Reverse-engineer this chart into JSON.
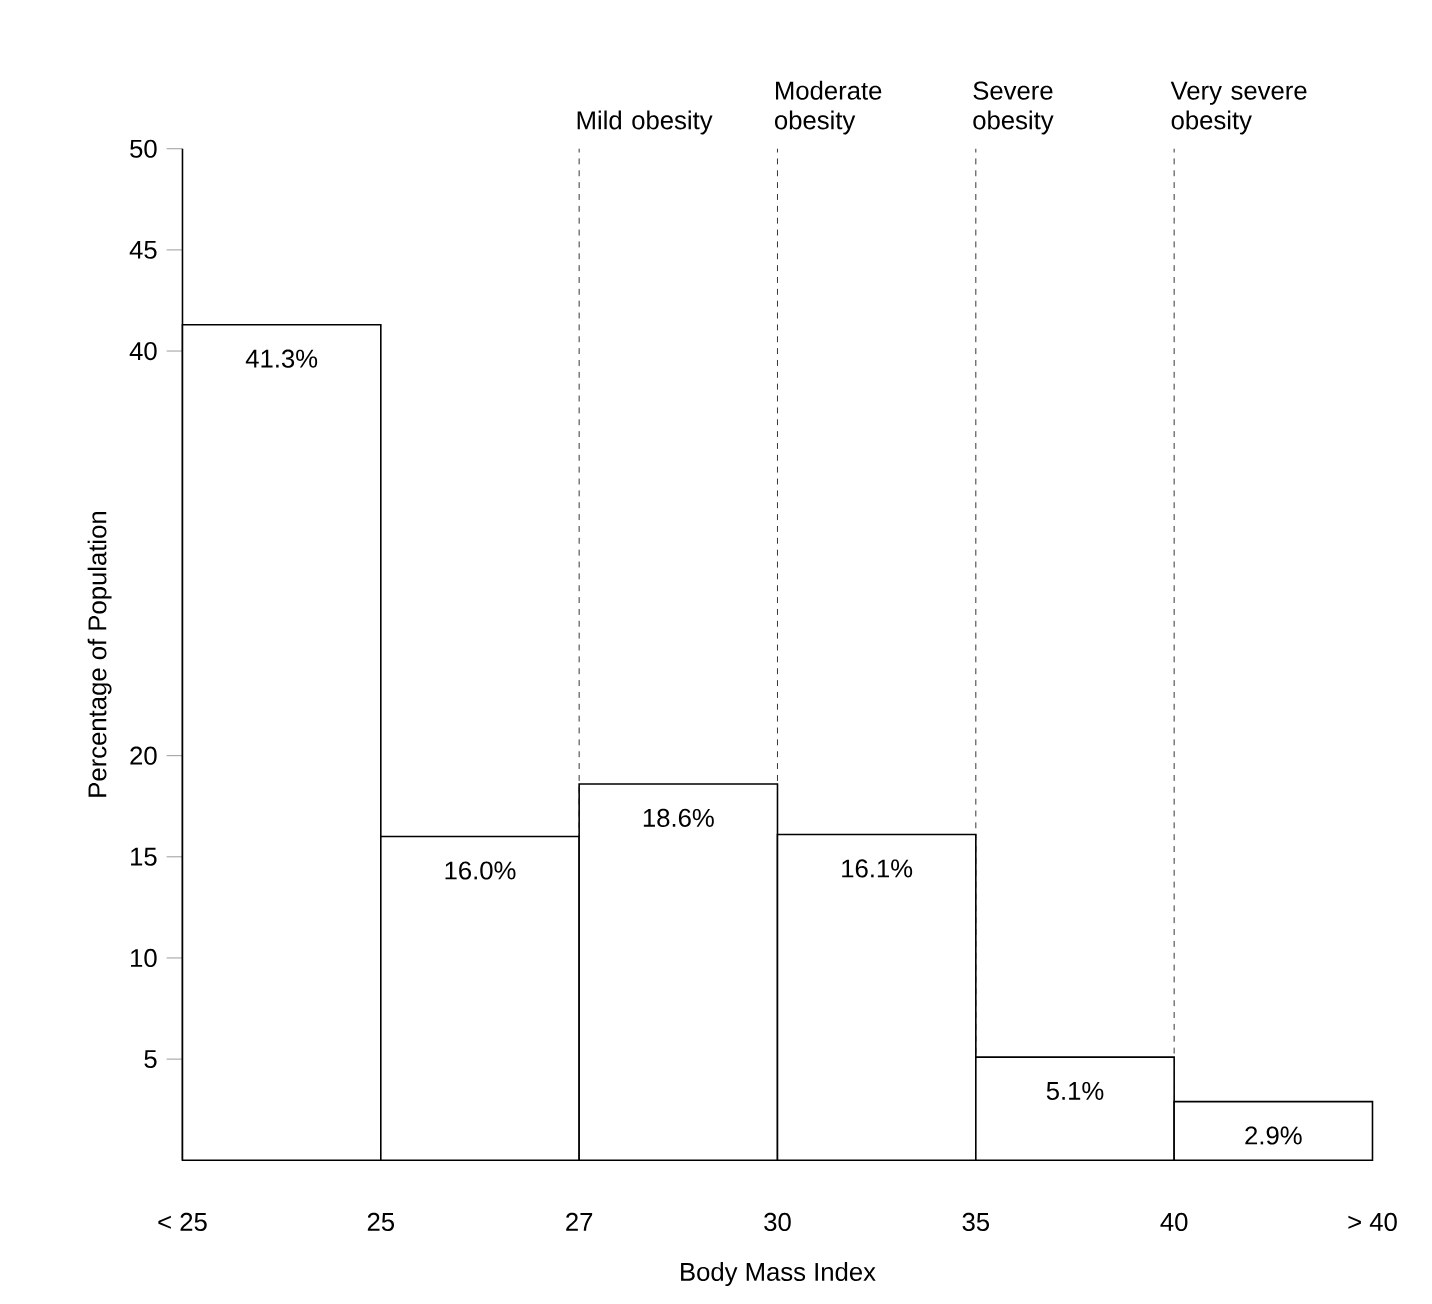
{
  "chart_data": {
    "type": "bar",
    "xlabel": "Body Mass Index",
    "ylabel": "Percentage of Population",
    "categories": [
      null,
      null,
      null,
      null,
      null,
      null
    ],
    "values": [
      41.3,
      16.0,
      18.6,
      16.1,
      5.1,
      2.9
    ],
    "value_labels": [
      "41.3%",
      "16.0%",
      "18.6%",
      "16.1%",
      "5.1%",
      "2.9%"
    ],
    "color": "#ffffff",
    "ylim": [
      0,
      50
    ],
    "yticks": [
      5,
      10,
      15,
      20,
      40,
      45,
      50
    ],
    "annotations": [
      "< 25",
      "25",
      "27",
      "30",
      "35",
      "40",
      "> 40",
      "Mild obesity",
      "Moderate obesity",
      "Severe obesity",
      "Very severe obesity"
    ]
  }
}
